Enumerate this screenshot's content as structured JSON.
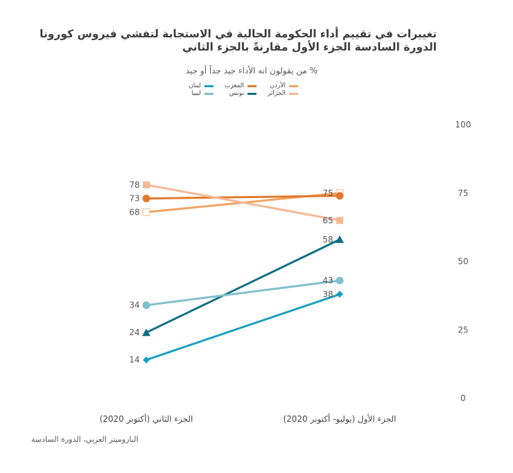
{
  "chart_data": {
    "type": "line",
    "title_line1": "تغييرات في تقييم أداء الحكومة الحالية في الاستجابة لتفشي فيروس كورونا",
    "title_line2": "الدورة السادسة الجزء الأول مقارنةً بالجزء الثاني",
    "subtitle": "%  من يقولون انه الأداء جيد جداً أو جيد",
    "source": "الباروميتر العربي، الدورة السادسة",
    "categories": [
      "الجزء الثاني (أكتوبر 2020)",
      "الجزء الأول (يوليو- أكتوبر 2020)"
    ],
    "ylim": [
      0,
      100
    ],
    "yticks": [
      "0",
      "25",
      "50",
      "75",
      "100"
    ],
    "legend_position": "top",
    "series": [
      {
        "name": "الأردن",
        "values": [
          68,
          75
        ],
        "color": "#f4a261",
        "marker": "square-outline"
      },
      {
        "name": "المغرب",
        "values": [
          73,
          74
        ],
        "color": "#e07b2e",
        "marker": "circle"
      },
      {
        "name": "لبنان",
        "values": [
          14,
          38
        ],
        "color": "#1a9fbf",
        "marker": "diamond"
      },
      {
        "name": "الجزائر",
        "values": [
          78,
          65
        ],
        "color": "#f5b895",
        "marker": "square"
      },
      {
        "name": "تونس",
        "values": [
          24,
          58
        ],
        "color": "#0f6e85",
        "marker": "triangle"
      },
      {
        "name": "ليبيا",
        "values": [
          34,
          43
        ],
        "color": "#7fbfcb",
        "marker": "circle"
      }
    ],
    "data_labels": {
      "left": [
        "78",
        "73",
        "68",
        "34",
        "24",
        "14"
      ],
      "right": [
        "75",
        "65",
        "58",
        "43",
        "38"
      ]
    }
  }
}
